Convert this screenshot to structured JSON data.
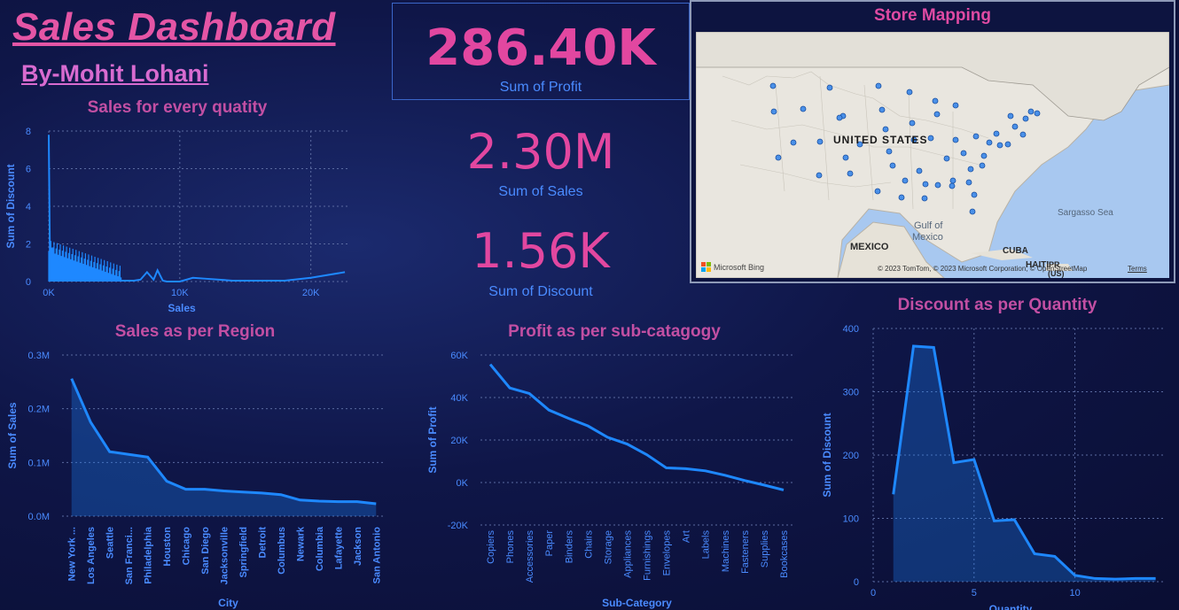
{
  "header": {
    "title": "Sales Dashboard",
    "author": "By-Mohit Lohani"
  },
  "kpis": [
    {
      "value": "286.40K",
      "label": "Sum of Profit"
    },
    {
      "value": "2.30M",
      "label": "Sum of Sales"
    },
    {
      "value": "1.56K",
      "label": "Sum of Discount"
    }
  ],
  "map": {
    "title": "Store Mapping",
    "labels": {
      "country": "UNITED STATES",
      "mexico": "MEXICO",
      "gulf1": "Gulf of",
      "gulf2": "Mexico",
      "cuba": "CUBA",
      "haiti": "HAITI",
      "pr": "PR",
      "us": "(US)",
      "sargasso": "Sargasso Sea"
    },
    "brand": "Microsoft Bing",
    "attribution": "© 2023 TomTom, © 2023 Microsoft Corporation, © OpenStreetMap",
    "terms": "Terms"
  },
  "colors": {
    "accent": "#e247a0",
    "line": "#1e88ff",
    "text": "#4a8bff"
  },
  "chart_data": [
    {
      "type": "line",
      "title": "Sales for every quatity",
      "xlabel": "Sales",
      "ylabel": "Sum of Discount",
      "xlim": [
        0,
        23000
      ],
      "ylim": [
        0,
        8
      ],
      "xticks": [
        "0K",
        "10K",
        "20K"
      ],
      "yticks": [
        "0",
        "2",
        "4",
        "6",
        "8"
      ],
      "x": [
        0,
        100,
        200,
        400,
        600,
        800,
        1000,
        1300,
        1600,
        2000,
        2500,
        3000,
        3500,
        4000,
        4500,
        5000,
        5500,
        6000,
        6500,
        7000,
        7500,
        8000,
        8300,
        8700,
        9000,
        10000,
        11000,
        12000,
        14000,
        16000,
        18000,
        20000,
        22600
      ],
      "y": [
        7.8,
        0.4,
        1.8,
        1.2,
        1.5,
        0.8,
        1.0,
        0.6,
        0.5,
        0.4,
        0.6,
        0.3,
        0.35,
        0.25,
        0.3,
        0.1,
        0.05,
        0.05,
        0.05,
        0.1,
        0.5,
        0.1,
        0.6,
        0.05,
        0.0,
        0.0,
        0.2,
        0.15,
        0.05,
        0.05,
        0.05,
        0.2,
        0.5
      ]
    },
    {
      "type": "area",
      "title": "Sales as per Region",
      "xlabel": "City",
      "ylabel": "Sum of Sales",
      "ylim": [
        0,
        0.3
      ],
      "yticks": [
        "0.0M",
        "0.1M",
        "0.2M",
        "0.3M"
      ],
      "categories": [
        "New York ...",
        "Los Angeles",
        "Seattle",
        "San Franci...",
        "Philadelphia",
        "Houston",
        "Chicago",
        "San Diego",
        "Jacksonville",
        "Springfield",
        "Detroit",
        "Columbus",
        "Newark",
        "Columbia",
        "Lafayette",
        "Jackson",
        "San Antonio"
      ],
      "values": [
        0.256,
        0.175,
        0.12,
        0.115,
        0.11,
        0.065,
        0.05,
        0.05,
        0.047,
        0.045,
        0.043,
        0.04,
        0.03,
        0.028,
        0.027,
        0.027,
        0.023
      ]
    },
    {
      "type": "line",
      "title": "Profit as per sub-catagogy",
      "xlabel": "Sub-Category",
      "ylabel": "Sum of Profit",
      "ylim": [
        -20000,
        60000
      ],
      "yticks": [
        "-20K",
        "0K",
        "20K",
        "40K",
        "60K"
      ],
      "categories": [
        "Copiers",
        "Phones",
        "Accessories",
        "Paper",
        "Binders",
        "Chairs",
        "Storage",
        "Appliances",
        "Furnishings",
        "Envelopes",
        "Art",
        "Labels",
        "Machines",
        "Fasteners",
        "Supplies",
        "Bookcases"
      ],
      "values": [
        55600,
        44500,
        41900,
        34100,
        30200,
        26600,
        21300,
        18100,
        13100,
        6900,
        6500,
        5500,
        3400,
        950,
        -1200,
        -3500
      ]
    },
    {
      "type": "area",
      "title": "Discount as per Quantity",
      "xlabel": "Quantity",
      "ylabel": "Sum of Discount",
      "xlim": [
        0,
        14.5
      ],
      "ylim": [
        0,
        400
      ],
      "xticks": [
        "0",
        "5",
        "10"
      ],
      "yticks": [
        "0",
        "100",
        "200",
        "300",
        "400"
      ],
      "x": [
        1,
        2,
        3,
        4,
        5,
        6,
        7,
        8,
        9,
        10,
        11,
        12,
        13,
        14
      ],
      "y": [
        138,
        372,
        370,
        188,
        193,
        96,
        98,
        44,
        40,
        10,
        5,
        4,
        5,
        5
      ]
    }
  ]
}
